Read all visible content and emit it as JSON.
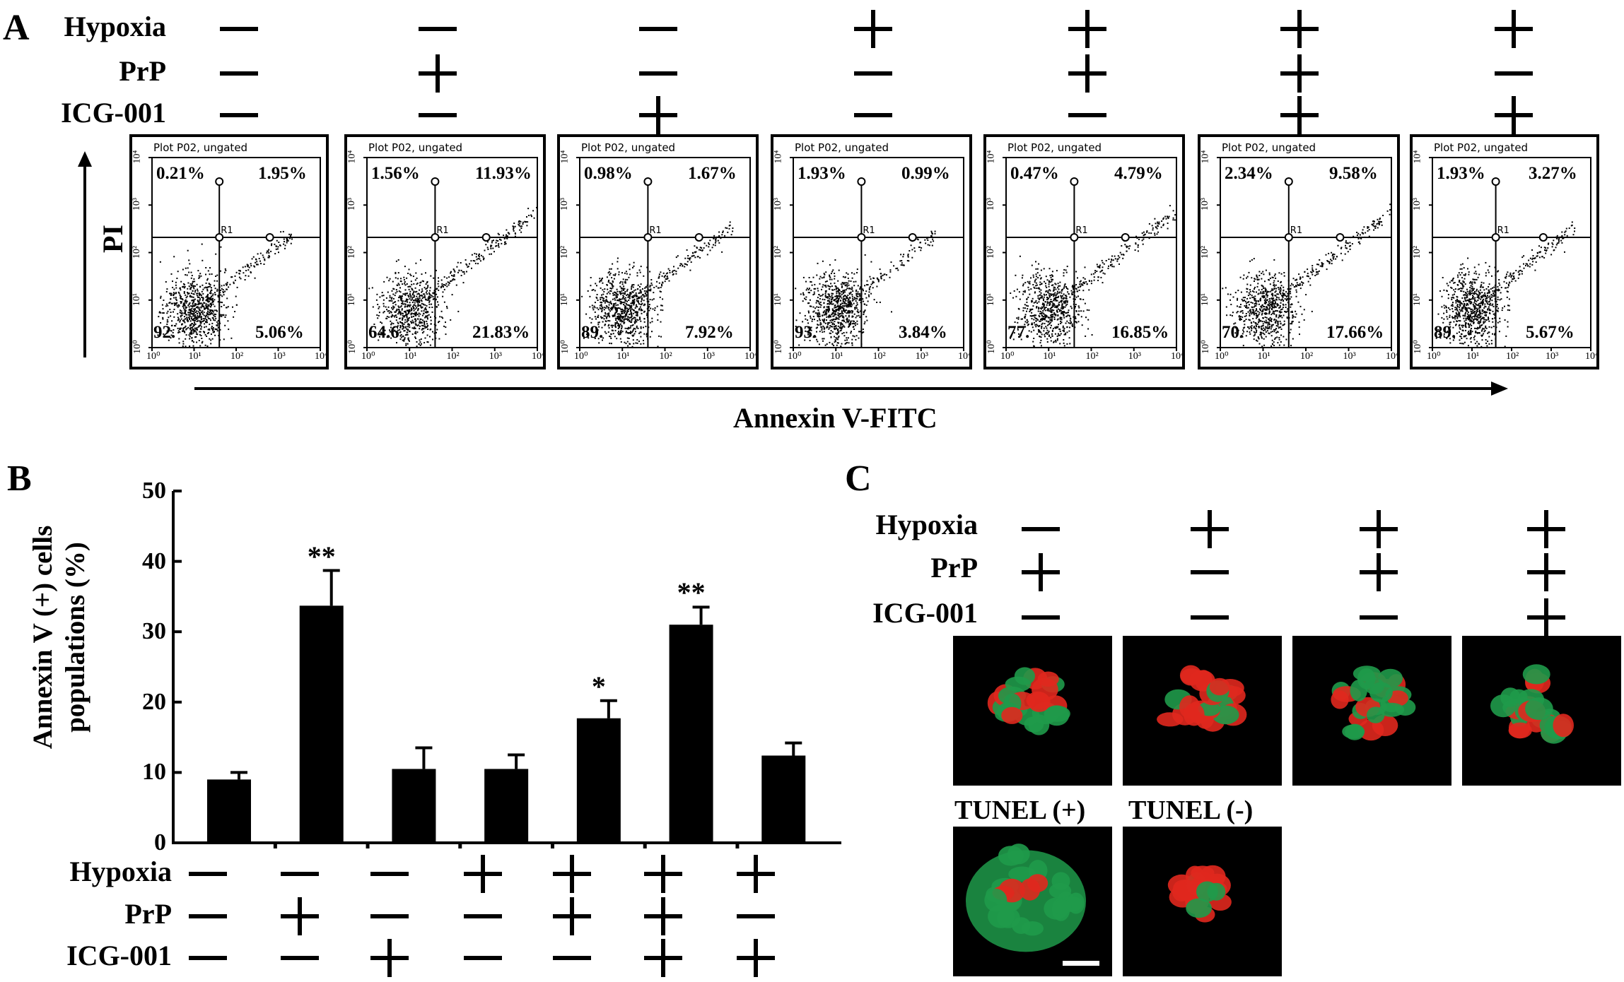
{
  "panel_a": {
    "letter": "A",
    "condition_labels": [
      "Hypoxia",
      "PrP",
      "ICG-001"
    ],
    "conditions": [
      [
        "-",
        "-",
        "-"
      ],
      [
        "-",
        "+",
        "-"
      ],
      [
        "-",
        "-",
        "+"
      ],
      [
        "+",
        "-",
        "-"
      ],
      [
        "+",
        "+",
        "-"
      ],
      [
        "+",
        "+",
        "+"
      ],
      [
        "+",
        "-",
        "+"
      ]
    ],
    "plot_header": "Plot P02, ungated",
    "gate_label": "R1",
    "x_tick_labels": [
      "10⁰",
      "10¹",
      "10²",
      "10³",
      "10⁴"
    ],
    "y_tick_labels": [
      "10⁰",
      "10¹",
      "10²",
      "10³",
      "10⁴"
    ],
    "y_axis_label": "PI",
    "x_axis_label": "Annexin V-FITC",
    "plots": [
      {
        "ul": "0.21%",
        "ur": "1.95%",
        "ll": "92.",
        "lr": "5.06%"
      },
      {
        "ul": "1.56%",
        "ur": "11.93%",
        "ll": "64.6",
        "lr": "21.83%"
      },
      {
        "ul": "0.98%",
        "ur": "1.67%",
        "ll": "89.",
        "lr": "7.92%"
      },
      {
        "ul": "1.93%",
        "ur": "0.99%",
        "ll": "93.",
        "lr": "3.84%"
      },
      {
        "ul": "0.47%",
        "ur": "4.79%",
        "ll": "77.",
        "lr": "16.85%"
      },
      {
        "ul": "2.34%",
        "ur": "9.58%",
        "ll": "70.",
        "lr": "17.66%"
      },
      {
        "ul": "1.93%",
        "ur": "3.27%",
        "ll": "89.",
        "lr": "5.67%"
      }
    ]
  },
  "chart_data": {
    "type": "bar",
    "ylabel": "Annexin V (+) cells populations (%)",
    "ylim": [
      0,
      50
    ],
    "yticks": [
      "0",
      "10",
      "20",
      "30",
      "40",
      "50"
    ],
    "categories": [
      "",
      "",
      "",
      "",
      "",
      "",
      ""
    ],
    "values": [
      9.0,
      33.7,
      10.5,
      10.5,
      17.7,
      31.0,
      12.4
    ],
    "errors": [
      1.0,
      5.0,
      3.0,
      2.0,
      2.5,
      2.5,
      1.8
    ],
    "annotations": [
      "",
      "**",
      "",
      "",
      "*",
      "**",
      ""
    ],
    "bar_color": "#000000",
    "grid": false
  },
  "panel_b": {
    "letter": "B",
    "condition_labels": [
      "Hypoxia",
      "PrP",
      "ICG-001"
    ],
    "conditions": [
      [
        "-",
        "-",
        "-"
      ],
      [
        "-",
        "+",
        "-"
      ],
      [
        "-",
        "-",
        "+"
      ],
      [
        "+",
        "-",
        "-"
      ],
      [
        "+",
        "+",
        "-"
      ],
      [
        "+",
        "+",
        "+"
      ],
      [
        "+",
        "-",
        "+"
      ]
    ]
  },
  "panel_c": {
    "letter": "C",
    "condition_labels": [
      "Hypoxia",
      "PrP",
      "ICG-001"
    ],
    "conditions": [
      [
        "-",
        "+",
        "-"
      ],
      [
        "+",
        "-",
        "-"
      ],
      [
        "+",
        "+",
        "-"
      ],
      [
        "+",
        "+",
        "+"
      ]
    ],
    "control_labels": [
      "TUNEL (+)",
      "TUNEL (-)"
    ],
    "colors": {
      "green": "#1f9a4a",
      "red": "#e0281e",
      "background": "#000000"
    }
  }
}
